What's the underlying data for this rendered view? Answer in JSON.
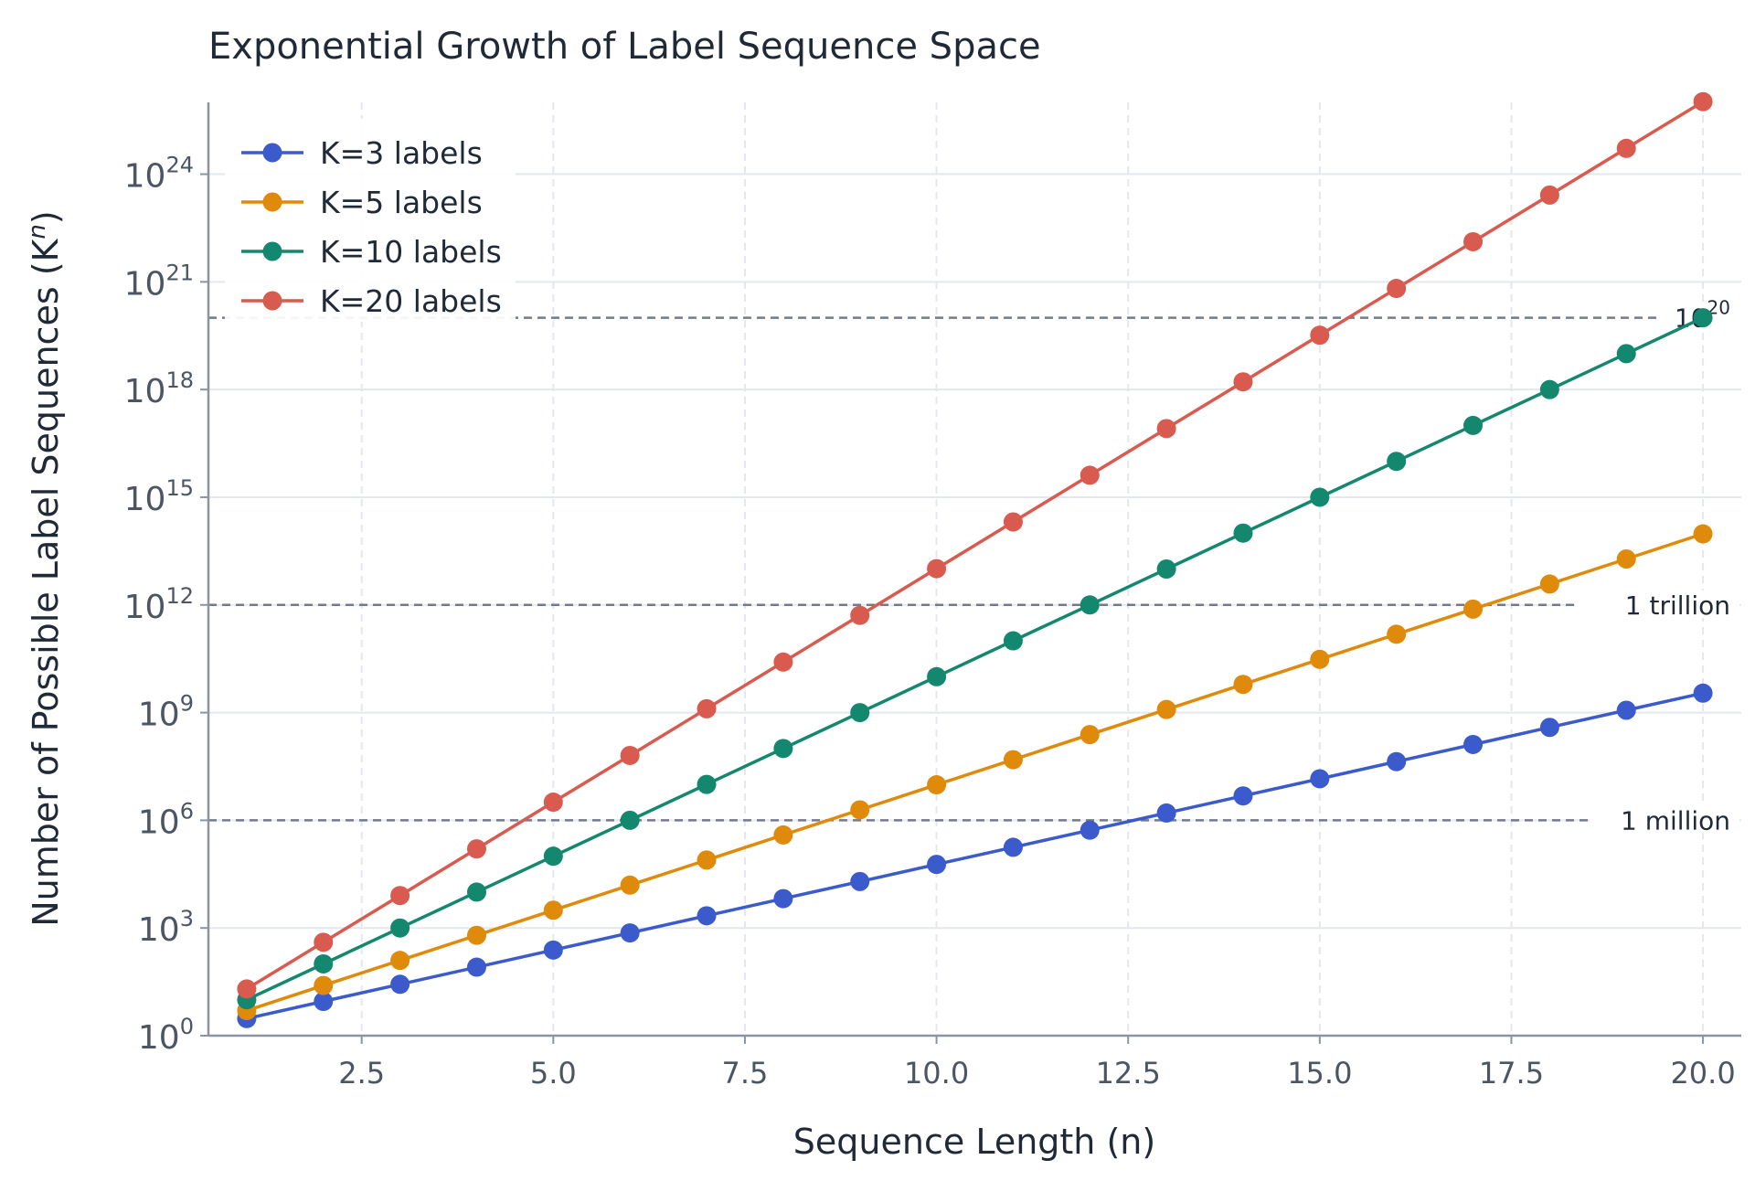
{
  "chart_data": {
    "type": "line",
    "title": "Exponential Growth of Label Sequence Space",
    "xlabel": "Sequence Length (n)",
    "ylabel": "Number of Possible Label Sequences (K",
    "ylabel_superscript": "n",
    "ylabel_close": ")",
    "y_scale": "log",
    "xlim": [
      0.5,
      20.5
    ],
    "ylim": [
      1,
      1e+26
    ],
    "x_ticks": [
      {
        "value": 2.5,
        "label": "2.5"
      },
      {
        "value": 5.0,
        "label": "5.0"
      },
      {
        "value": 7.5,
        "label": "7.5"
      },
      {
        "value": 10.0,
        "label": "10.0"
      },
      {
        "value": 12.5,
        "label": "12.5"
      },
      {
        "value": 15.0,
        "label": "15.0"
      },
      {
        "value": 17.5,
        "label": "17.5"
      },
      {
        "value": 20.0,
        "label": "20.0"
      }
    ],
    "y_ticks": [
      {
        "exp": 0,
        "base": "10",
        "power": "0"
      },
      {
        "exp": 3,
        "base": "10",
        "power": "3"
      },
      {
        "exp": 6,
        "base": "10",
        "power": "6"
      },
      {
        "exp": 9,
        "base": "10",
        "power": "9"
      },
      {
        "exp": 12,
        "base": "10",
        "power": "12"
      },
      {
        "exp": 15,
        "base": "10",
        "power": "15"
      },
      {
        "exp": 18,
        "base": "10",
        "power": "18"
      },
      {
        "exp": 21,
        "base": "10",
        "power": "21"
      },
      {
        "exp": 24,
        "base": "10",
        "power": "24"
      }
    ],
    "grid": true,
    "legend_position": "top-left",
    "x": [
      1,
      2,
      3,
      4,
      5,
      6,
      7,
      8,
      9,
      10,
      11,
      12,
      13,
      14,
      15,
      16,
      17,
      18,
      19,
      20
    ],
    "series": [
      {
        "name": "K=3 labels",
        "base": 3,
        "color": "#3b5bcc",
        "values": [
          3,
          9,
          27,
          81,
          243,
          729,
          2187,
          6561,
          19683,
          59049,
          177147,
          531441,
          1594323,
          4782969,
          14348907,
          43046721,
          129140163,
          387420489,
          1162261467,
          3486784401
        ]
      },
      {
        "name": "K=5 labels",
        "base": 5,
        "color": "#e08a0b",
        "values": [
          5,
          25,
          125,
          625,
          3125,
          15625,
          78125,
          390625,
          1953125,
          9765625,
          48828125,
          244140625,
          1220703125,
          6103515625,
          30517578125,
          152587890625,
          762939453125,
          3814697265625,
          19073486328125,
          95367431640625
        ]
      },
      {
        "name": "K=10 labels",
        "base": 10,
        "color": "#14876f",
        "values": [
          10.0,
          100.0,
          1000.0,
          10000.0,
          100000.0,
          1000000.0,
          10000000.0,
          100000000.0,
          1000000000.0,
          10000000000.0,
          100000000000.0,
          1000000000000.0,
          10000000000000.0,
          100000000000000.0,
          1000000000000000.0,
          1e+16,
          1e+17,
          1e+18,
          1e+19,
          1e+20
        ]
      },
      {
        "name": "K=20 labels",
        "base": 20,
        "color": "#d95a4e",
        "values": [
          20.0,
          400.0,
          8000.0,
          160000.0,
          3200000.0,
          64000000.0,
          1280000000.0,
          25600000000.0,
          512000000000.0,
          10240000000000.0,
          204800000000000.0,
          4096000000000000.0,
          8.192e+16,
          1.6384e+18,
          3.2768e+19,
          6.5536e+20,
          1.31072e+22,
          2.62144e+23,
          5.24288e+24,
          1.048576e+26
        ]
      }
    ],
    "reference_lines": [
      {
        "value": 1000000.0,
        "label": "1 million"
      },
      {
        "value": 1000000000000.0,
        "label": "1 trillion"
      },
      {
        "value": 1e+20,
        "label": "10",
        "label_power": "20"
      }
    ]
  }
}
